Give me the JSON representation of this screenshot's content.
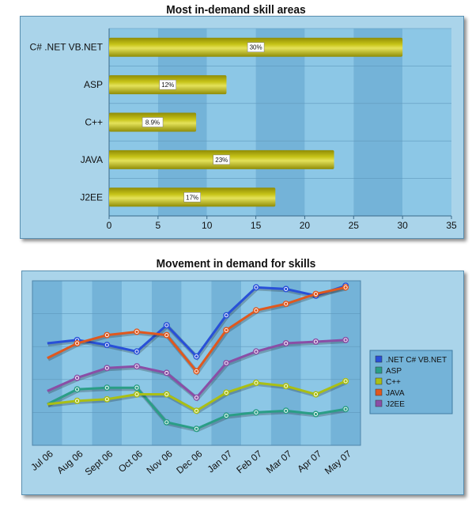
{
  "chart_data": [
    {
      "type": "bar",
      "orientation": "horizontal",
      "title": "Most in-demand skill areas",
      "categories": [
        "C# .NET VB.NET",
        "ASP",
        "C++",
        "JAVA",
        "J2EE"
      ],
      "values": [
        30,
        12,
        8.9,
        23,
        17
      ],
      "data_labels": [
        "30%",
        "12%",
        "8.9%",
        "23%",
        "17%"
      ],
      "xlim": [
        0,
        35
      ],
      "xticks": [
        0,
        5,
        10,
        15,
        20,
        25,
        30,
        35
      ],
      "grid": true,
      "colors": {
        "bar": "#c7c418",
        "bar_dark": "#8f8c06",
        "band_light": "#8cc7e6",
        "band_dark": "#74b3d8"
      }
    },
    {
      "type": "line",
      "title": "Movement in demand for skills",
      "categories": [
        "Jul 06",
        "Aug 06",
        "Sept 06",
        "Oct 06",
        "Nov 06",
        "Dec 06",
        "Jan 07",
        "Feb 07",
        "Mar 07",
        "Apr 07",
        "May 07"
      ],
      "ylim": [
        0,
        100
      ],
      "grid": true,
      "legend_position": "right",
      "series": [
        {
          "name": ".NET C# VB.NET",
          "color": "#2850d8",
          "values": [
            62,
            64,
            61,
            57,
            73,
            54,
            79,
            96,
            95,
            91,
            97
          ]
        },
        {
          "name": "ASP",
          "color": "#2a9e86",
          "values": [
            25,
            34,
            35,
            35,
            14,
            10,
            18,
            20,
            21,
            19,
            22
          ]
        },
        {
          "name": "C++",
          "color": "#aabf14",
          "values": [
            25,
            27,
            28,
            31,
            31,
            21,
            32,
            38,
            36,
            31,
            39
          ]
        },
        {
          "name": "JAVA",
          "color": "#e0581e",
          "values": [
            53,
            62,
            67,
            69,
            67,
            45,
            70,
            82,
            86,
            92,
            96
          ]
        },
        {
          "name": "J2EE",
          "color": "#8a4ea6",
          "values": [
            33,
            41,
            47,
            48,
            44,
            29,
            50,
            57,
            62,
            63,
            64
          ]
        }
      ],
      "has_markers": [
        false,
        true,
        true,
        true,
        true,
        true,
        true,
        true,
        true,
        true,
        true
      ]
    }
  ]
}
